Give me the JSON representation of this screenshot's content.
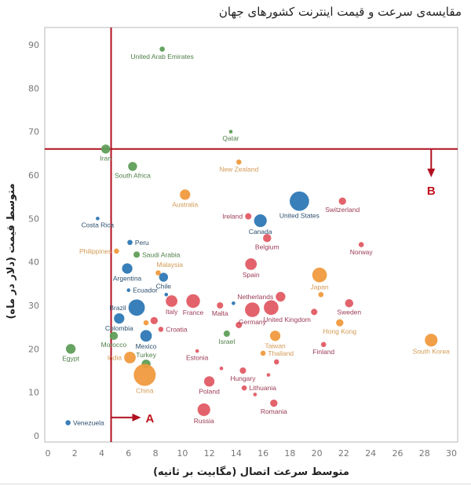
{
  "chart_data": {
    "type": "scatter",
    "title": "مقایسه‌ی سرعت و قیمت اینترنت کشورهای جهان",
    "xlabel": "متوسط سرعت اتصال (مگابیت بر ثانیه)",
    "ylabel": "متوسط قیمت (دلار در ماه)",
    "xlim": [
      0,
      30
    ],
    "ylim": [
      0,
      95
    ],
    "xticks": [
      "0",
      "2",
      "4",
      "6",
      "8",
      "10",
      "12",
      "14",
      "16",
      "18",
      "20",
      "22",
      "24",
      "26",
      "28",
      "30"
    ],
    "yticks": [
      "0",
      "10",
      "20",
      "30",
      "40",
      "50",
      "60",
      "70",
      "80",
      "90"
    ],
    "grid": false,
    "colors": {
      "americas": "#2e78b5",
      "asia_pacific": "#f09a3e",
      "europe": "#e15b64",
      "middle_east_africa": "#5f9e58",
      "reference_line": "#b01020",
      "label_americas": "#2c4f6e",
      "label_asia_pacific": "#d29a55",
      "label_europe": "#9b3b55",
      "label_mea": "#4f7f48"
    },
    "reference_lines": {
      "vertical_x": 4.7,
      "horizontal_y": 66,
      "annotations": [
        {
          "label": "A",
          "direction": "right",
          "x": 4.7,
          "y": 4.2
        },
        {
          "label": "B",
          "direction": "down",
          "x": 28.5,
          "y": 66
        }
      ]
    },
    "points": [
      {
        "name": "United Arab Emirates",
        "x": 8.5,
        "y": 89,
        "size": 1,
        "region": "mea",
        "label_pos": "below"
      },
      {
        "name": "Qatar",
        "x": 13.6,
        "y": 70,
        "size": 0.5,
        "region": "mea",
        "label_pos": "below"
      },
      {
        "name": "Iran",
        "x": 4.3,
        "y": 66,
        "size": 3,
        "region": "mea",
        "label_pos": "below"
      },
      {
        "name": "South Africa",
        "x": 6.3,
        "y": 62,
        "size": 3,
        "region": "mea",
        "label_pos": "below"
      },
      {
        "name": "New Zealand",
        "x": 14.2,
        "y": 63,
        "size": 1,
        "region": "ap",
        "label_pos": "below"
      },
      {
        "name": "Australia",
        "x": 10.2,
        "y": 55.5,
        "size": 4,
        "region": "ap",
        "label_pos": "below"
      },
      {
        "name": "United States",
        "x": 18.7,
        "y": 54,
        "size": 14,
        "region": "am",
        "label_pos": "below"
      },
      {
        "name": "Switzerland",
        "x": 21.9,
        "y": 54,
        "size": 2,
        "region": "eu",
        "label_pos": "below"
      },
      {
        "name": "Ireland",
        "x": 14.9,
        "y": 50.5,
        "size": 1.5,
        "region": "eu",
        "label_pos": "left"
      },
      {
        "name": "Canada",
        "x": 15.8,
        "y": 49.5,
        "size": 6,
        "region": "am",
        "label_pos": "below"
      },
      {
        "name": "Costa Rica",
        "x": 3.7,
        "y": 50,
        "size": 0.5,
        "region": "am",
        "label_pos": "below"
      },
      {
        "name": "Belgium",
        "x": 16.3,
        "y": 45.5,
        "size": 2.5,
        "region": "eu",
        "label_pos": "below"
      },
      {
        "name": "Norway",
        "x": 23.3,
        "y": 44,
        "size": 1,
        "region": "eu",
        "label_pos": "below"
      },
      {
        "name": "Peru",
        "x": 6.1,
        "y": 44.5,
        "size": 1,
        "region": "am",
        "label_pos": "right"
      },
      {
        "name": "Philippines",
        "x": 5.1,
        "y": 42.5,
        "size": 1,
        "region": "ap",
        "label_pos": "left"
      },
      {
        "name": "Saudi Arabia",
        "x": 6.6,
        "y": 41.7,
        "size": 1.5,
        "region": "mea",
        "label_pos": "right"
      },
      {
        "name": "Spain",
        "x": 15.1,
        "y": 39.5,
        "size": 5,
        "region": "eu",
        "label_pos": "below"
      },
      {
        "name": "Malaysia",
        "x": 8.2,
        "y": 37.5,
        "size": 1,
        "region": "ap",
        "label_pos": "above-right"
      },
      {
        "name": "Argentina",
        "x": 5.9,
        "y": 38.5,
        "size": 4,
        "region": "am",
        "label_pos": "below"
      },
      {
        "name": "Chile",
        "x": 8.6,
        "y": 36.5,
        "size": 3,
        "region": "am",
        "label_pos": "below"
      },
      {
        "name": "Ecuador",
        "x": 6.0,
        "y": 33.5,
        "size": 0.5,
        "region": "am",
        "label_pos": "right"
      },
      {
        "name": "Japan",
        "x": 20.2,
        "y": 37,
        "size": 8,
        "region": "ap",
        "label_pos": "below"
      },
      {
        "name": "Brazil",
        "x": 6.6,
        "y": 29.5,
        "size": 10,
        "region": "am",
        "label_pos": "left"
      },
      {
        "name": "Italy",
        "x": 9.2,
        "y": 31,
        "size": 5,
        "region": "eu",
        "label_pos": "below"
      },
      {
        "name": "France",
        "x": 10.8,
        "y": 31,
        "size": 7,
        "region": "eu",
        "label_pos": "below"
      },
      {
        "name": "Malta",
        "x": 12.8,
        "y": 30,
        "size": 1.5,
        "region": "eu",
        "label_pos": "below"
      },
      {
        "name": "Netherlands",
        "x": 17.3,
        "y": 32,
        "size": 3.5,
        "region": "eu",
        "label_pos": "left"
      },
      {
        "name": "Germany",
        "x": 15.2,
        "y": 29,
        "size": 8,
        "region": "eu",
        "label_pos": "below"
      },
      {
        "name": "United Kingdom",
        "x": 16.6,
        "y": 29.5,
        "size": 8,
        "region": "eu",
        "label_pos": "below-right"
      },
      {
        "name": "Sweden",
        "x": 22.4,
        "y": 30.5,
        "size": 2.5,
        "region": "eu",
        "label_pos": "below"
      },
      {
        "name": "Colombia",
        "x": 5.3,
        "y": 27,
        "size": 4,
        "region": "am",
        "label_pos": "below"
      },
      {
        "name": "Croatia",
        "x": 8.4,
        "y": 24.5,
        "size": 1,
        "region": "eu",
        "label_pos": "right"
      },
      {
        "name": "Mexico",
        "x": 7.3,
        "y": 23,
        "size": 5,
        "region": "am",
        "label_pos": "below"
      },
      {
        "name": "Morocco",
        "x": 4.9,
        "y": 23,
        "size": 2.5,
        "region": "mea",
        "label_pos": "below"
      },
      {
        "name": "Israel",
        "x": 13.3,
        "y": 23.5,
        "size": 1.5,
        "region": "mea",
        "label_pos": "below"
      },
      {
        "name": "Taiwan",
        "x": 16.9,
        "y": 23,
        "size": 4,
        "region": "ap",
        "label_pos": "below"
      },
      {
        "name": "Hong Kong",
        "x": 21.7,
        "y": 26,
        "size": 2,
        "region": "ap",
        "label_pos": "below"
      },
      {
        "name": "Finland",
        "x": 20.5,
        "y": 21,
        "size": 1,
        "region": "eu",
        "label_pos": "below"
      },
      {
        "name": "South Korea",
        "x": 28.5,
        "y": 22,
        "size": 6,
        "region": "ap",
        "label_pos": "below"
      },
      {
        "name": "Egypt",
        "x": 1.7,
        "y": 20,
        "size": 3.5,
        "region": "mea",
        "label_pos": "below"
      },
      {
        "name": "India",
        "x": 6.1,
        "y": 18,
        "size": 5,
        "region": "ap",
        "label_pos": "left"
      },
      {
        "name": "Turkey",
        "x": 7.3,
        "y": 16.5,
        "size": 3,
        "region": "mea",
        "label_pos": "above"
      },
      {
        "name": "Thailand",
        "x": 16.0,
        "y": 19,
        "size": 1,
        "region": "ap",
        "label_pos": "right"
      },
      {
        "name": "Estonia",
        "x": 11.1,
        "y": 19.5,
        "size": 0.5,
        "region": "eu",
        "label_pos": "below"
      },
      {
        "name": "China",
        "x": 7.2,
        "y": 14,
        "size": 18,
        "region": "ap",
        "label_pos": "below"
      },
      {
        "name": "Hungary",
        "x": 14.5,
        "y": 15,
        "size": 1.5,
        "region": "eu",
        "label_pos": "below"
      },
      {
        "name": "Lithuania",
        "x": 14.6,
        "y": 11,
        "size": 1,
        "region": "eu",
        "label_pos": "right"
      },
      {
        "name": "Poland",
        "x": 12.0,
        "y": 12.5,
        "size": 4,
        "region": "eu",
        "label_pos": "below"
      },
      {
        "name": "Romania",
        "x": 16.8,
        "y": 7.5,
        "size": 2,
        "region": "eu",
        "label_pos": "below"
      },
      {
        "name": "Russia",
        "x": 11.6,
        "y": 6,
        "size": 6,
        "region": "eu",
        "label_pos": "below"
      },
      {
        "name": "Venezuela",
        "x": 1.5,
        "y": 3,
        "size": 1,
        "region": "am",
        "label_pos": "right"
      },
      {
        "name": "",
        "x": 8.8,
        "y": 32.5,
        "size": 0.5,
        "region": "am",
        "label_pos": "none"
      },
      {
        "name": "",
        "x": 13.8,
        "y": 30.5,
        "size": 0.5,
        "region": "am",
        "label_pos": "none"
      },
      {
        "name": "",
        "x": 14.2,
        "y": 25.5,
        "size": 1.5,
        "region": "eu",
        "label_pos": "none"
      },
      {
        "name": "",
        "x": 7.9,
        "y": 26.5,
        "size": 2,
        "region": "eu",
        "label_pos": "none"
      },
      {
        "name": "",
        "x": 7.3,
        "y": 26,
        "size": 1,
        "region": "ap",
        "label_pos": "none"
      },
      {
        "name": "",
        "x": 20.3,
        "y": 32.5,
        "size": 1,
        "region": "ap",
        "label_pos": "none"
      },
      {
        "name": "",
        "x": 19.8,
        "y": 28.5,
        "size": 1.5,
        "region": "eu",
        "label_pos": "none"
      },
      {
        "name": "",
        "x": 17.0,
        "y": 17,
        "size": 1,
        "region": "eu",
        "label_pos": "none"
      },
      {
        "name": "",
        "x": 16.4,
        "y": 14,
        "size": 0.5,
        "region": "eu",
        "label_pos": "none"
      },
      {
        "name": "",
        "x": 12.9,
        "y": 15.5,
        "size": 0.5,
        "region": "eu",
        "label_pos": "none"
      },
      {
        "name": "",
        "x": 15.4,
        "y": 9.5,
        "size": 0.5,
        "region": "eu",
        "label_pos": "none"
      }
    ]
  }
}
